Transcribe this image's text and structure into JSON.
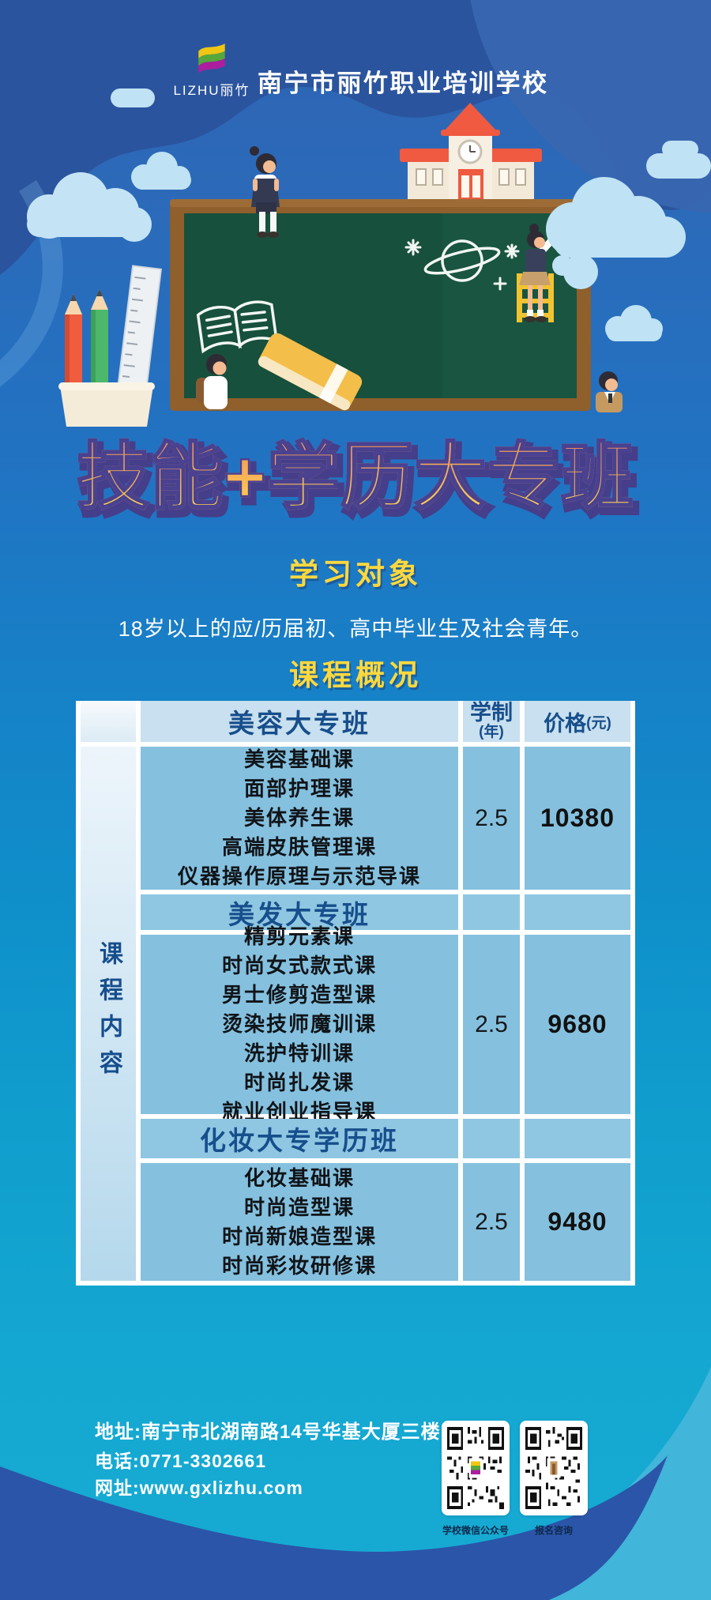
{
  "poster": {
    "logo_text": "LIZHU丽竹",
    "school_name": "南宁市丽竹职业培训学校",
    "title": "技能+学历大专班",
    "audience": {
      "heading": "学习对象",
      "text": "18岁以上的应/历届初、高中毕业生及社会青年。"
    },
    "overview_heading": "课程概况"
  },
  "table": {
    "side_label": "课程内容",
    "duration_header": "学制",
    "duration_unit": "(年)",
    "price_header": "价格",
    "price_unit": "(元)",
    "programs": [
      {
        "name": "美容大专班",
        "courses": [
          "美容基础课",
          "面部护理课",
          "美体养生课",
          "高端皮肤管理课",
          "仪器操作原理与示范导课"
        ],
        "duration": "2.5",
        "price": "10380"
      },
      {
        "name": "美发大专班",
        "courses": [
          "精剪元素课",
          "时尚女式款式课",
          "男士修剪造型课",
          "烫染技师魔训课",
          "洗护特训课",
          "时尚扎发课",
          "就业创业指导课"
        ],
        "duration": "2.5",
        "price": "9680"
      },
      {
        "name": "化妆大专学历班",
        "courses": [
          "化妆基础课",
          "时尚造型课",
          "时尚新娘造型课",
          "时尚彩妆研修课"
        ],
        "duration": "2.5",
        "price": "9480"
      }
    ]
  },
  "footer": {
    "address": "地址:南宁市北湖南路14号华基大厦三楼",
    "phone": "电话:0771-3302661",
    "website": "网址:www.gxlizhu.com",
    "qr1_label": "学校微信公众号",
    "qr2_label": "报名咨询"
  },
  "colors": {
    "accent_yellow": "#fcd83e",
    "title_gradient_top": "#f0935f",
    "title_gradient_bottom": "#ffd94e",
    "top_wave_navy": "#2b549e",
    "bottom_wave_blue": "#2b55a8",
    "table_cell_blue": "#85c1df",
    "table_header_blue": "#c8e0ef",
    "board_green": "#195540",
    "board_frame_brown": "#8f5f2c"
  }
}
